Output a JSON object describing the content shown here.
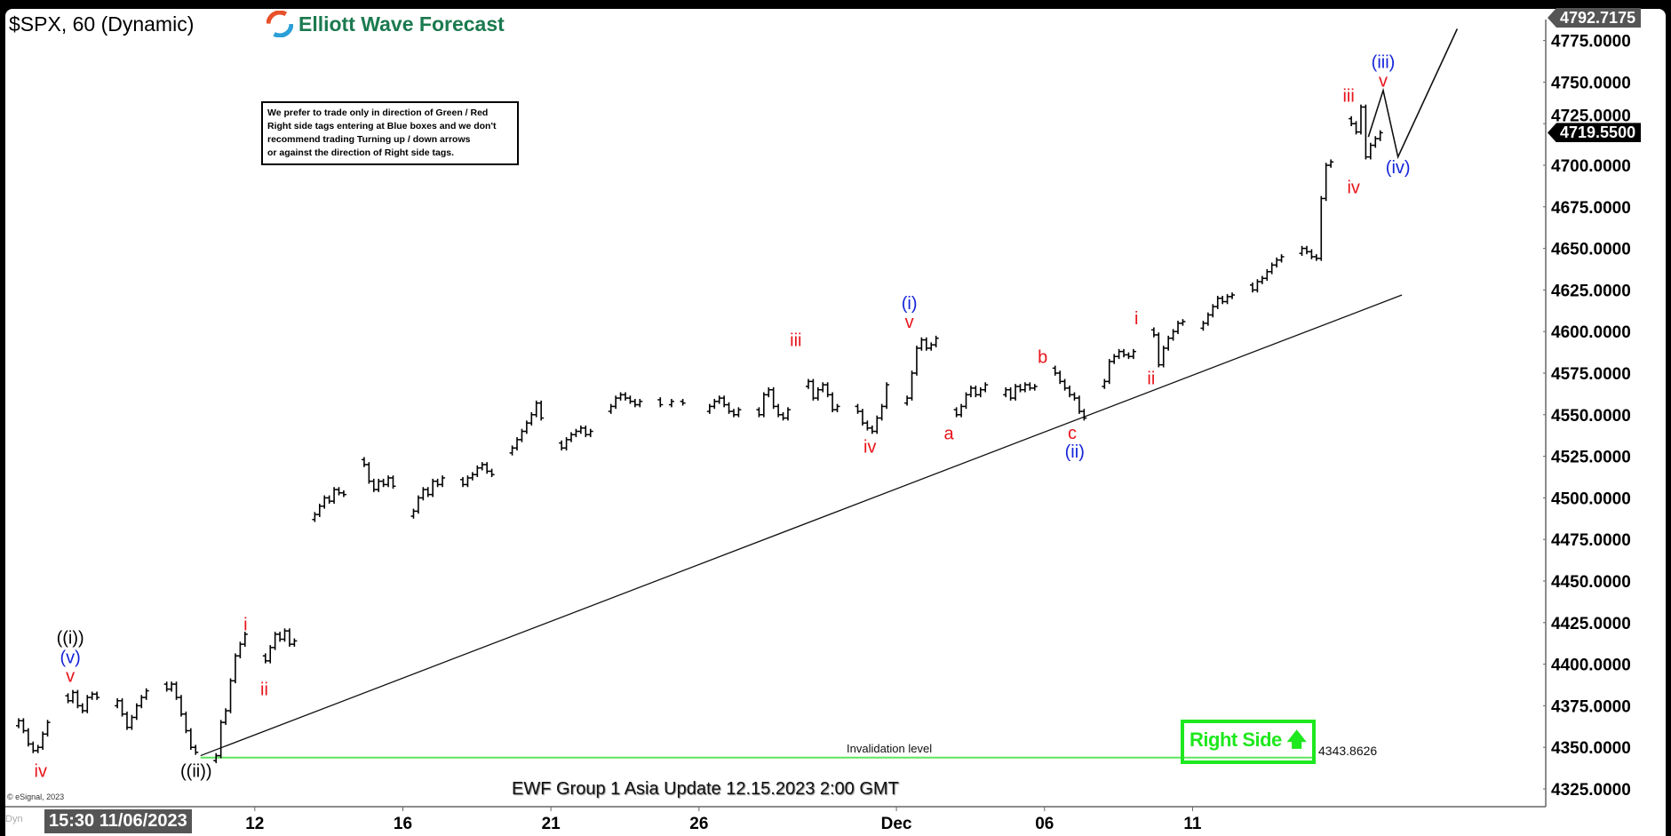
{
  "header": {
    "symbol_title": "$SPX, 60 (Dynamic)",
    "brand": "Elliott Wave Forecast"
  },
  "note": {
    "lines": [
      "We prefer to trade only in direction of Green / Red",
      "Right side tags entering at Blue boxes and we don't",
      "recommend trading Turning up / down arrows",
      "or against the direction of Right side tags."
    ]
  },
  "footer": {
    "update": "EWF Group 1  Asia  Update 12.15.2023 2:00 GMT",
    "copyright": "© eSignal, 2023",
    "dyn": "Dyn",
    "cursor_time": "15:30 11/06/2023"
  },
  "right_side": {
    "label": "Right Side",
    "arrow": "up-arrow",
    "color": "#1ee81e"
  },
  "invalidation": {
    "label": "Invalidation level",
    "value": "4343.8626",
    "price": 4343.8626,
    "color": "#5ee65e"
  },
  "price_tags": {
    "high": "4792.7175",
    "last": "4719.5500"
  },
  "chart_data": {
    "type": "ohlc-bar",
    "symbol": "$SPX",
    "interval": "60",
    "ylim": [
      4310,
      4800
    ],
    "y_ticks": [
      4325,
      4350,
      4375,
      4400,
      4425,
      4450,
      4475,
      4500,
      4525,
      4550,
      4575,
      4600,
      4625,
      4650,
      4675,
      4700,
      4725,
      4750,
      4775
    ],
    "x_ticks": [
      {
        "label": "12",
        "session": 5
      },
      {
        "label": "16",
        "session": 8
      },
      {
        "label": "21",
        "session": 11
      },
      {
        "label": "26",
        "session": 14
      },
      {
        "label": "Dec",
        "session": 18
      },
      {
        "label": "06",
        "session": 21
      },
      {
        "label": "11",
        "session": 24
      }
    ],
    "sessions": [
      {
        "date": "11/06",
        "closes": [
          4366,
          4360,
          4352,
          4348,
          4350,
          4358,
          4365
        ]
      },
      {
        "date": "11/07",
        "closes": [
          4378,
          4383,
          4375,
          4372,
          4380,
          4382,
          4380
        ]
      },
      {
        "date": "11/08",
        "closes": [
          4378,
          4370,
          4362,
          4368,
          4375,
          4380,
          4384
        ]
      },
      {
        "date": "11/09",
        "closes": [
          4385,
          4388,
          4380,
          4370,
          4360,
          4350,
          4347
        ]
      },
      {
        "date": "11/10",
        "closes": [
          4345,
          4365,
          4372,
          4390,
          4405,
          4412,
          4418
        ]
      },
      {
        "date": "11/13",
        "closes": [
          4402,
          4410,
          4418,
          4415,
          4420,
          4412,
          4414
        ]
      },
      {
        "date": "11/14",
        "closes": [
          4490,
          4495,
          4500,
          4498,
          4505,
          4503,
          4502
        ]
      },
      {
        "date": "11/15",
        "closes": [
          4520,
          4510,
          4505,
          4510,
          4508,
          4512,
          4507
        ]
      },
      {
        "date": "11/16",
        "closes": [
          4492,
          4500,
          4505,
          4502,
          4510,
          4508,
          4512
        ]
      },
      {
        "date": "11/17",
        "closes": [
          4508,
          4512,
          4514,
          4518,
          4520,
          4516,
          4514
        ]
      },
      {
        "date": "11/20",
        "closes": [
          4530,
          4535,
          4540,
          4545,
          4550,
          4557,
          4548
        ]
      },
      {
        "date": "11/21",
        "closes": [
          4530,
          4535,
          4538,
          4540,
          4542,
          4538,
          4540
        ]
      },
      {
        "date": "11/22",
        "closes": [
          4555,
          4560,
          4562,
          4560,
          4558,
          4556,
          4558
        ]
      },
      {
        "date": "11/24",
        "closes": [
          4556,
          4558,
          4557
        ]
      },
      {
        "date": "11/27",
        "closes": [
          4555,
          4558,
          4560,
          4556,
          4552,
          4550,
          4553
        ]
      },
      {
        "date": "11/28",
        "closes": [
          4550,
          4562,
          4565,
          4555,
          4550,
          4548,
          4553
        ]
      },
      {
        "date": "11/29",
        "closes": [
          4570,
          4560,
          4565,
          4568,
          4562,
          4553,
          4555
        ]
      },
      {
        "date": "11/30",
        "closes": [
          4552,
          4545,
          4542,
          4540,
          4548,
          4555,
          4568
        ]
      },
      {
        "date": "12/01",
        "closes": [
          4560,
          4575,
          4590,
          4595,
          4590,
          4592,
          4596
        ]
      },
      {
        "date": "12/04",
        "closes": [
          4550,
          4555,
          4562,
          4566,
          4562,
          4565,
          4568
        ]
      },
      {
        "date": "12/05",
        "closes": [
          4565,
          4560,
          4567,
          4565,
          4568,
          4566,
          4567
        ]
      },
      {
        "date": "12/06",
        "closes": [
          4575,
          4570,
          4566,
          4562,
          4560,
          4552,
          4548
        ]
      },
      {
        "date": "12/07",
        "closes": [
          4570,
          4582,
          4585,
          4588,
          4586,
          4585,
          4588
        ]
      },
      {
        "date": "12/08",
        "closes": [
          4598,
          4580,
          4590,
          4596,
          4600,
          4605,
          4606
        ]
      },
      {
        "date": "12/11",
        "closes": [
          4605,
          4610,
          4615,
          4620,
          4618,
          4621,
          4622
        ]
      },
      {
        "date": "12/12",
        "closes": [
          4625,
          4630,
          4632,
          4636,
          4640,
          4643,
          4645
        ]
      },
      {
        "date": "12/13",
        "closes": [
          4650,
          4648,
          4645,
          4644,
          4680,
          4700,
          4702
        ]
      },
      {
        "date": "12/14",
        "closes": [
          4725,
          4720,
          4735,
          4705,
          4712,
          4716,
          4719.55
        ]
      }
    ],
    "projection": [
      {
        "session": 27.4,
        "price": 4717
      },
      {
        "session": 27.7,
        "price": 4745
      },
      {
        "session": 28.0,
        "price": 4705
      },
      {
        "session": 29.2,
        "price": 4782
      }
    ],
    "trendline": [
      {
        "session": 3.74,
        "price": 4345
      },
      {
        "session": 28.08,
        "price": 4622
      }
    ],
    "invalidation_span": [
      3.74,
      26.3
    ],
    "wave_labels": [
      {
        "text": "iv",
        "color": "#e8141b",
        "session": 0.5,
        "price": 4336
      },
      {
        "text": "((i))",
        "color": "#000000",
        "session": 1.1,
        "price": 4416
      },
      {
        "text": "(v)",
        "color": "#1424d8",
        "session": 1.1,
        "price": 4403
      },
      {
        "text": "v",
        "color": "#e8141b",
        "session": 1.1,
        "price": 4393
      },
      {
        "text": "((ii))",
        "color": "#000000",
        "session": 3.65,
        "price": 4336
      },
      {
        "text": "i",
        "color": "#e8141b",
        "session": 4.65,
        "price": 4424
      },
      {
        "text": "ii",
        "color": "#e8141b",
        "session": 5.03,
        "price": 4385
      },
      {
        "text": "iii",
        "color": "#e8141b",
        "session": 15.8,
        "price": 4595
      },
      {
        "text": "iv",
        "color": "#e8141b",
        "session": 17.3,
        "price": 4531
      },
      {
        "text": "(i)",
        "color": "#1424d8",
        "session": 18.1,
        "price": 4617
      },
      {
        "text": "v",
        "color": "#e8141b",
        "session": 18.1,
        "price": 4606
      },
      {
        "text": "a",
        "color": "#e8141b",
        "session": 18.9,
        "price": 4539
      },
      {
        "text": "b",
        "color": "#e8141b",
        "session": 20.8,
        "price": 4585
      },
      {
        "text": "c",
        "color": "#e8141b",
        "session": 21.4,
        "price": 4538
      },
      {
        "text": "(ii)",
        "color": "#1424d8",
        "session": 21.45,
        "price": 4528
      },
      {
        "text": "i",
        "color": "#e8141b",
        "session": 22.7,
        "price": 4608
      },
      {
        "text": "ii",
        "color": "#e8141b",
        "session": 23.0,
        "price": 4572
      },
      {
        "text": "iii",
        "color": "#e8141b",
        "session": 27.0,
        "price": 4742
      },
      {
        "text": "iv",
        "color": "#e8141b",
        "session": 27.1,
        "price": 4687
      },
      {
        "text": "(iii)",
        "color": "#1424d8",
        "session": 27.7,
        "price": 4762
      },
      {
        "text": "v",
        "color": "#e8141b",
        "session": 27.7,
        "price": 4751
      },
      {
        "text": "(iv)",
        "color": "#1424d8",
        "session": 28.0,
        "price": 4699
      }
    ]
  }
}
